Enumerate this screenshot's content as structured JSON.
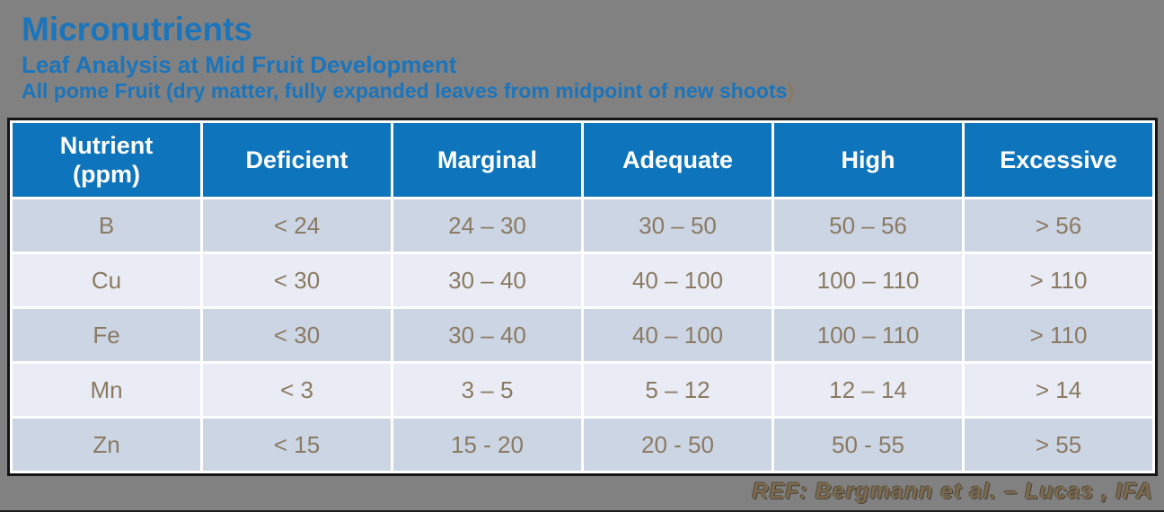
{
  "slide": {
    "title": "Micronutrients",
    "subtitle_line1": "Leaf Analysis at Mid Fruit Development",
    "subtitle_line2": "All pome Fruit (dry matter, fully expanded leaves from midpoint of new shoots",
    "subtitle_line2_close_paren": ")",
    "reference": "REF: Bergmann et al. – Lucas , IFA"
  },
  "colors": {
    "background": "#818181",
    "title_blue": "#1b75bc",
    "header_blue": "#0e74bb",
    "row_dark": "#ccd5e4",
    "row_light": "#e9ecf4",
    "cell_text": "#8a7a63",
    "reference_text": "#7b6950",
    "table_border": "#151515",
    "header_text": "#ffffff"
  },
  "chart_data": {
    "type": "table",
    "title": "Micronutrients",
    "columns": [
      "Nutrient\n(ppm)",
      "Deficient",
      "Marginal",
      "Adequate",
      "High",
      "Excessive"
    ],
    "rows": [
      [
        "B",
        "< 24",
        "24 – 30",
        "30 – 50",
        "50 – 56",
        "> 56"
      ],
      [
        "Cu",
        "< 30",
        "30 – 40",
        "40 – 100",
        "100 – 110",
        "> 110"
      ],
      [
        "Fe",
        "< 30",
        "30 – 40",
        "40 – 100",
        "100 – 110",
        "> 110"
      ],
      [
        "Mn",
        "< 3",
        "3 – 5",
        "5 – 12",
        "12 – 14",
        "> 14"
      ],
      [
        "Zn",
        "< 15",
        "15 - 20",
        "20 - 50",
        "50 - 55",
        "> 55"
      ]
    ]
  }
}
